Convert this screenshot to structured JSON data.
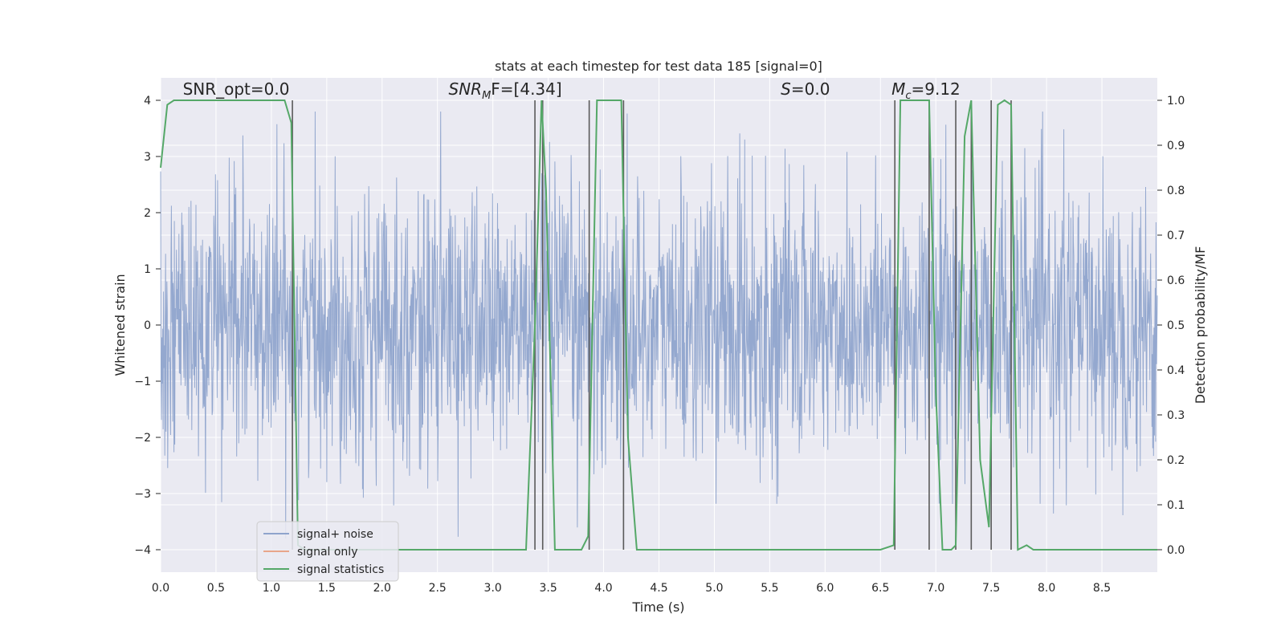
{
  "chart_data": {
    "type": "line",
    "title": "stats at each timestep for test data 185 [signal=0]",
    "xlabel": "Time (s)",
    "ylabel": "Whitened strain",
    "y2label": "Detection probability/MF",
    "xlim": [
      0,
      9
    ],
    "ylim": [
      -4.4,
      4.4
    ],
    "y2lim": [
      -0.05,
      1.05
    ],
    "xticks": [
      "0.0",
      "0.5",
      "1.0",
      "1.5",
      "2.0",
      "2.5",
      "3.0",
      "3.5",
      "4.0",
      "4.5",
      "5.0",
      "5.5",
      "6.0",
      "6.5",
      "7.0",
      "7.5",
      "8.0",
      "8.5"
    ],
    "yticks": [
      "−4",
      "−3",
      "−2",
      "−1",
      "0",
      "1",
      "2",
      "3",
      "4"
    ],
    "y2ticks": [
      "0.0",
      "0.1",
      "0.2",
      "0.3",
      "0.4",
      "0.5",
      "0.6",
      "0.7",
      "0.8",
      "0.9",
      "1.0"
    ],
    "grid": true,
    "legend": "lower-left",
    "annotations": [
      {
        "text": "SNR_opt=0.0",
        "x": 0.2,
        "y": 4.1
      },
      {
        "text": "SNR",
        "sub": "M",
        "tail": "F=[4.34]",
        "x": 2.6,
        "y": 4.1
      },
      {
        "text": "S",
        "tail": "=0.0",
        "x": 5.6,
        "y": 4.1
      },
      {
        "text": "M",
        "sub": "c",
        "tail": "=9.12",
        "x": 6.6,
        "y": 4.1
      }
    ],
    "series": [
      {
        "name": "signal+ noise",
        "color": "#8fa4cc",
        "axis": "left",
        "kind": "noise",
        "x_range": [
          0,
          9
        ],
        "amplitude_typical": 1.6,
        "amplitude_max": 3.8
      },
      {
        "name": "signal only",
        "color": "#e8a58a",
        "axis": "left",
        "kind": "empty",
        "values": []
      },
      {
        "name": "signal statistics",
        "color": "#55a868",
        "axis": "right",
        "x": [
          0.0,
          0.06,
          0.12,
          1.12,
          1.18,
          1.24,
          1.3,
          3.3,
          3.38,
          3.44,
          3.48,
          3.56,
          3.8,
          3.86,
          3.94,
          4.0,
          4.16,
          4.22,
          4.3,
          4.9,
          6.5,
          6.62,
          6.68,
          6.74,
          6.94,
          7.0,
          7.06,
          7.14,
          7.18,
          7.26,
          7.32,
          7.4,
          7.48,
          7.56,
          7.62,
          7.68,
          7.74,
          7.82,
          7.88,
          9.0
        ],
        "values": [
          0.85,
          0.99,
          1.0,
          1.0,
          0.95,
          0.01,
          0.0,
          0.0,
          0.5,
          1.0,
          0.8,
          0.0,
          0.0,
          0.03,
          1.0,
          1.0,
          1.0,
          0.25,
          0.0,
          0.0,
          0.0,
          0.01,
          1.0,
          1.0,
          1.0,
          0.35,
          0.0,
          0.0,
          0.01,
          0.92,
          1.0,
          0.2,
          0.05,
          0.99,
          1.0,
          0.99,
          0.0,
          0.01,
          0.0,
          0.0
        ]
      }
    ],
    "vlines": {
      "color": "#5a5a5a",
      "axis": "right",
      "x": [
        1.19,
        3.38,
        3.45,
        3.87,
        4.18,
        6.63,
        6.94,
        7.18,
        7.32,
        7.5,
        7.68
      ],
      "y2_from": 0.0,
      "y2_to": 1.0
    }
  }
}
